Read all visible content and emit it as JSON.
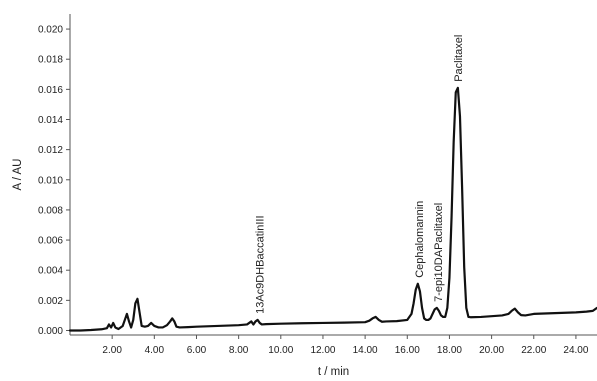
{
  "chart_data": {
    "type": "line",
    "title": "",
    "xlabel": "t / min",
    "ylabel": "A / AU",
    "xlim": [
      0,
      25
    ],
    "ylim": [
      -0.0003,
      0.021
    ],
    "x_ticks": [
      2,
      4,
      6,
      8,
      10,
      12,
      14,
      16,
      18,
      20,
      22,
      24
    ],
    "x_tick_labels": [
      "2.00",
      "4.00",
      "6.00",
      "8.00",
      "10.00",
      "12.00",
      "14.00",
      "16.00",
      "18.00",
      "20.00",
      "22.00",
      "24.00"
    ],
    "y_ticks": [
      0,
      0.002,
      0.004,
      0.006,
      0.008,
      0.01,
      0.012,
      0.014,
      0.016,
      0.018,
      0.02
    ],
    "y_tick_labels": [
      "0.000",
      "0.002",
      "0.004",
      "0.006",
      "0.008",
      "0.010",
      "0.012",
      "0.014",
      "0.016",
      "0.018",
      "0.020"
    ],
    "grid": false,
    "series": [
      {
        "x": [
          0,
          0.5,
          1.0,
          1.5,
          1.75,
          1.85,
          1.95,
          2.05,
          2.15,
          2.3,
          2.5,
          2.6,
          2.7,
          2.8,
          2.9,
          3.0,
          3.1,
          3.2,
          3.3,
          3.4,
          3.55,
          3.7,
          3.85,
          4.0,
          4.2,
          4.4,
          4.6,
          4.75,
          4.85,
          4.95,
          5.05,
          5.2,
          5.6,
          6.0,
          7.0,
          8.0,
          8.4,
          8.6,
          8.7,
          8.8,
          8.9,
          9.0,
          9.1,
          9.3,
          10,
          11,
          12,
          13,
          14,
          14.2,
          14.35,
          14.5,
          14.65,
          14.8,
          15,
          15.5,
          16.0,
          16.2,
          16.3,
          16.4,
          16.5,
          16.6,
          16.7,
          16.8,
          16.9,
          17.0,
          17.1,
          17.2,
          17.3,
          17.4,
          17.5,
          17.6,
          17.7,
          17.8,
          17.9,
          18.0,
          18.1,
          18.2,
          18.3,
          18.4,
          18.5,
          18.6,
          18.7,
          18.8,
          18.9,
          19.0,
          19.5,
          20.0,
          20.5,
          20.8,
          20.95,
          21.1,
          21.25,
          21.4,
          21.6,
          22,
          23,
          24,
          24.5,
          24.8,
          25
        ],
        "y": [
          0,
          0,
          3e-05,
          8e-05,
          0.00015,
          0.0004,
          0.0002,
          0.0005,
          0.0002,
          0.0001,
          0.0003,
          0.0007,
          0.0011,
          0.0006,
          0.0002,
          0.0007,
          0.0018,
          0.0021,
          0.0012,
          0.0003,
          0.00025,
          0.0003,
          0.0005,
          0.0003,
          0.0002,
          0.0002,
          0.00035,
          0.0006,
          0.0008,
          0.0006,
          0.00025,
          0.0002,
          0.00022,
          0.00025,
          0.0003,
          0.00035,
          0.0004,
          0.0006,
          0.0004,
          0.0006,
          0.0007,
          0.0005,
          0.0004,
          0.00042,
          0.00045,
          0.00048,
          0.0005,
          0.00052,
          0.00055,
          0.00065,
          0.0008,
          0.0009,
          0.0007,
          0.00058,
          0.0006,
          0.00062,
          0.0007,
          0.0011,
          0.0018,
          0.0027,
          0.0031,
          0.0026,
          0.0015,
          0.0008,
          0.0007,
          0.0007,
          0.0008,
          0.0011,
          0.0014,
          0.0015,
          0.0013,
          0.001,
          0.0009,
          0.0009,
          0.0015,
          0.0035,
          0.0075,
          0.0125,
          0.0158,
          0.0161,
          0.0142,
          0.0095,
          0.0042,
          0.0015,
          0.0009,
          0.00088,
          0.0009,
          0.00095,
          0.001,
          0.0011,
          0.0013,
          0.00145,
          0.0012,
          0.00102,
          0.001,
          0.0011,
          0.00115,
          0.0012,
          0.00125,
          0.0013,
          0.0015
        ]
      }
    ],
    "annotations": [
      {
        "text": "13Ac9DHBaccatinIII",
        "x": 9.0,
        "y": 0.0007
      },
      {
        "text": "Cephalomannin",
        "x": 16.55,
        "y": 0.0031
      },
      {
        "text": "7-epi10DAPaclitaxel",
        "x": 17.45,
        "y": 0.0015
      },
      {
        "text": "Paclitaxel",
        "x": 18.4,
        "y": 0.0161
      }
    ]
  }
}
